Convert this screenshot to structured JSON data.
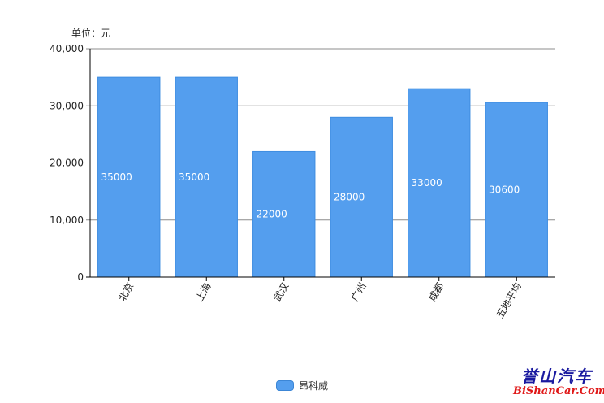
{
  "unit_label": "单位：元",
  "legend": {
    "label": "昂科威",
    "color": "#549eee"
  },
  "watermark": {
    "cn": "誉山汽车",
    "en": "BiShanCar.Com"
  },
  "chart_data": {
    "type": "bar",
    "categories": [
      "北京",
      "上海",
      "武汉",
      "广州",
      "成都",
      "五地平均"
    ],
    "series": [
      {
        "name": "昂科威",
        "values": [
          35000,
          35000,
          22000,
          28000,
          33000,
          30600
        ]
      }
    ],
    "ylim": [
      0,
      40000
    ],
    "yticks": [
      "0",
      "10,000",
      "20,000",
      "30,000",
      "40,000"
    ],
    "grid": true,
    "legend_position": "bottom",
    "bar_color": "#549eee",
    "label_color": "#ffffff"
  }
}
